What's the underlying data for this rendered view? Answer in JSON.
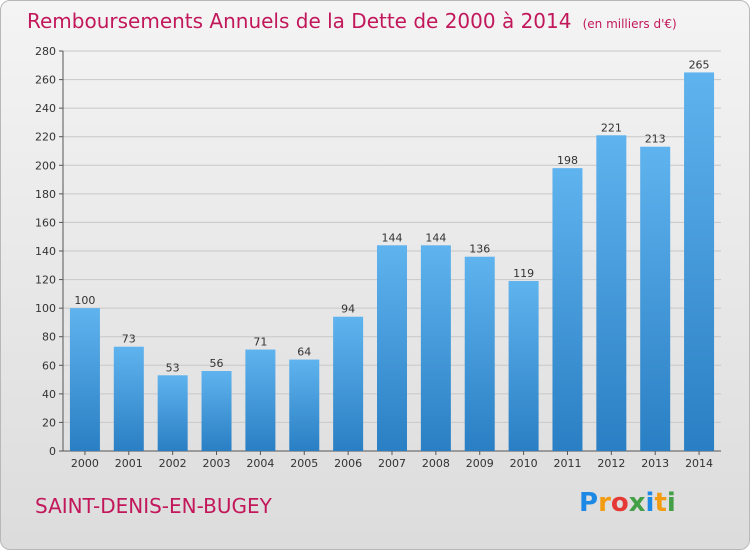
{
  "chart_data": {
    "type": "bar",
    "title": "Remboursements Annuels de la Dette de 2000 à 2014",
    "unit": "(en milliers d'€)",
    "xlabel": "",
    "ylabel": "",
    "categories": [
      "2000",
      "2001",
      "2002",
      "2003",
      "2004",
      "2005",
      "2006",
      "2007",
      "2008",
      "2009",
      "2010",
      "2011",
      "2012",
      "2013",
      "2014"
    ],
    "values": [
      100,
      73,
      53,
      56,
      71,
      64,
      94,
      144,
      144,
      136,
      119,
      198,
      221,
      213,
      265
    ],
    "ylim": [
      0,
      280
    ],
    "yticks": [
      0,
      20,
      40,
      60,
      80,
      100,
      120,
      140,
      160,
      180,
      200,
      220,
      240,
      260,
      280
    ],
    "grid": true,
    "bar_color": "#3d95db"
  },
  "commune": "SAINT-DENIS-EN-BUGEY",
  "logo": {
    "letters": [
      "P",
      "r",
      "o",
      "x",
      "i",
      "t",
      "i"
    ],
    "colors": [
      "#1e88e5",
      "#f39c12",
      "#e53935",
      "#43a047",
      "#1e88e5",
      "#f39c12",
      "#43a047"
    ]
  }
}
